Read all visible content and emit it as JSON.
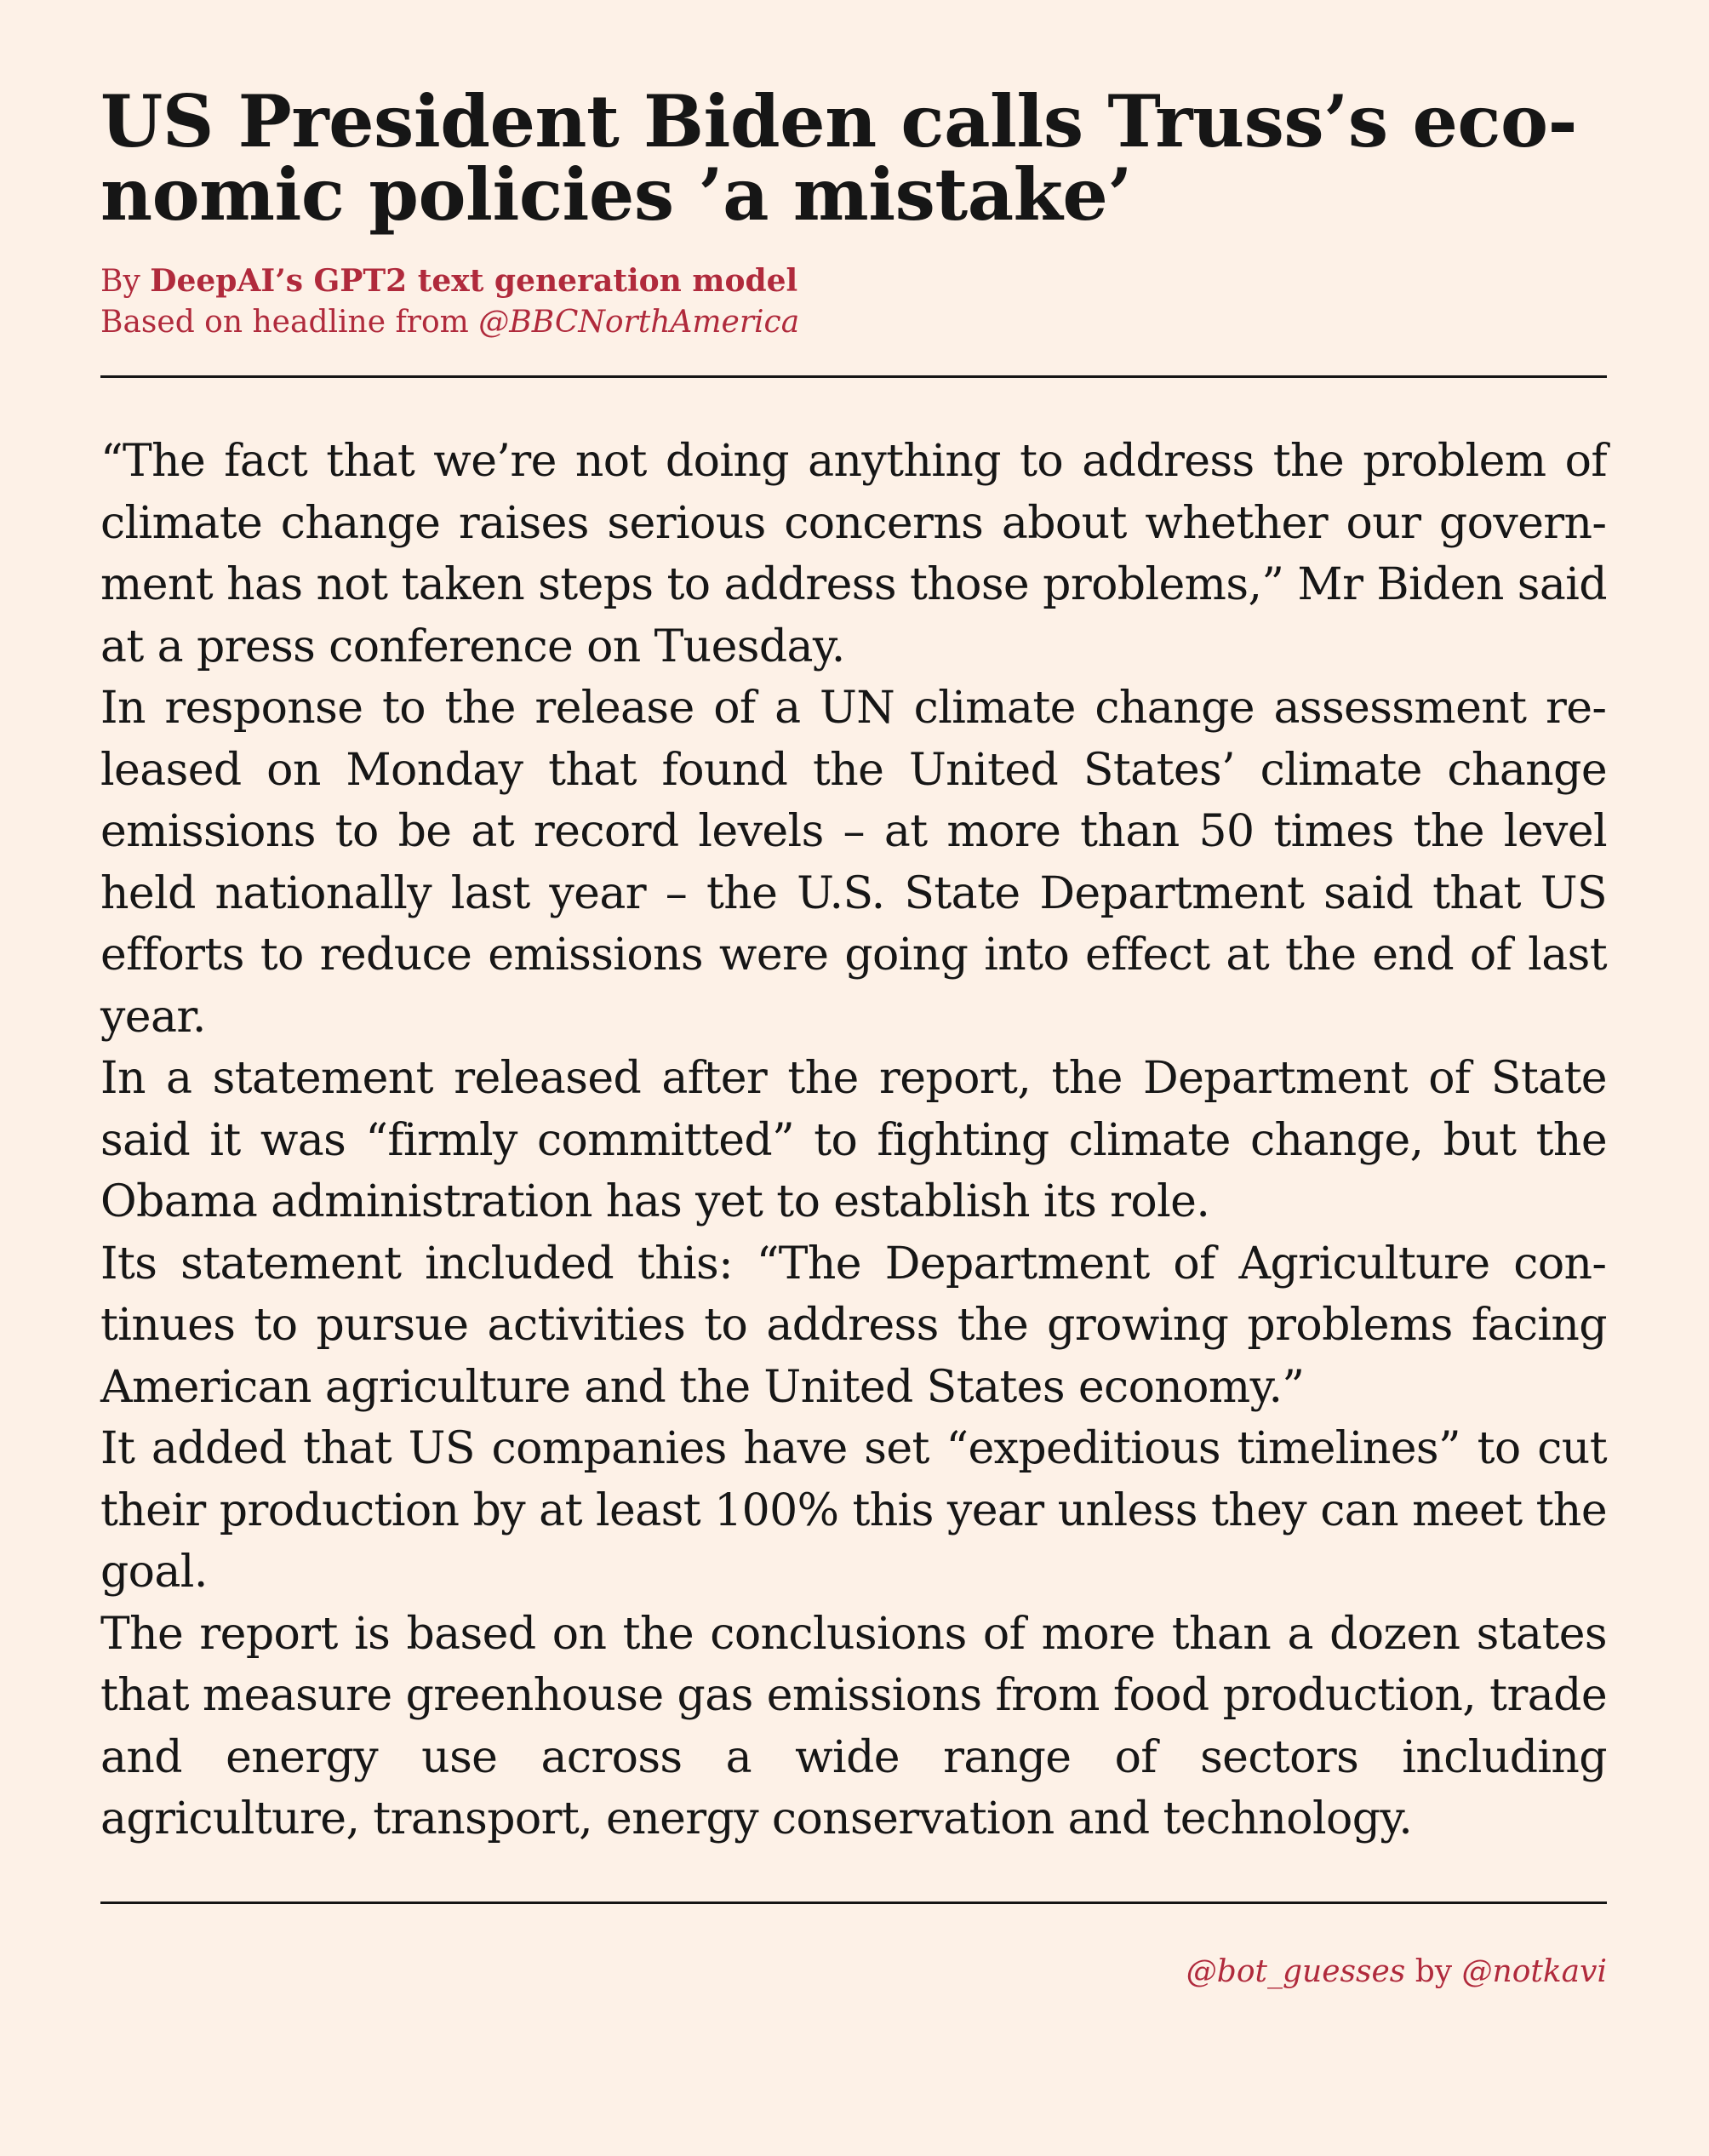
{
  "article": {
    "headline": "US President Biden calls Truss’s eco­nomic policies ’a mistake’",
    "byline": {
      "prefix": "By ",
      "author": "DeepAI’s GPT2 text generation model",
      "source_prefix": "Based on headline from ",
      "source_handle": "@BBCNorthAmerica"
    },
    "paragraphs": [
      "“The fact that we’re not doing anything to address the problem of climate change raises serious concerns about whether our govern­ment has not taken steps to address those problems,” Mr Biden said at a press conference on Tuesday.",
      "In response to the release of a UN climate change assessment re­leased on Monday that found the United States’ climate change emis­sions to be at record levels – at more than 50 times the level held nationally last year – the U.S. State Department said that US efforts to reduce emissions were going into effect at the end of last year.",
      "In a statement released after the report, the Department of State said it was “firmly committed” to fighting climate change, but the Obama administration has yet to establish its role.",
      "Its statement included this: “The Department of Agriculture con­tinues to pursue activities to address the growing problems facing American agriculture and the United States economy.”",
      "It added that US companies have set “expeditious timelines” to cut their production by at least 100% this year unless they can meet the goal.",
      "The report is based on the conclusions of more than a dozen states that measure greenhouse gas emissions from food production, trade and energy use across a wide range of sectors including agriculture, transport, energy conservation and technology."
    ]
  },
  "footer": {
    "bot_handle": "@bot_guesses",
    "by": " by ",
    "author_handle": "@notkavi"
  },
  "colors": {
    "background": "#fdf1e7",
    "text": "#161616",
    "accent": "#b02a3c"
  }
}
